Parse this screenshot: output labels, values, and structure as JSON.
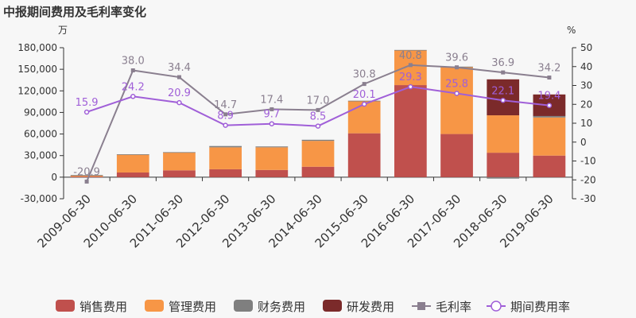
{
  "chart_data": {
    "type": "bar",
    "title": "中报期间费用及毛利率变化",
    "left_unit": "万",
    "right_unit": "%",
    "categories": [
      "2009-06-30",
      "2010-06-30",
      "2011-06-30",
      "2012-06-30",
      "2013-06-30",
      "2014-06-30",
      "2015-06-30",
      "2016-06-30",
      "2017-06-30",
      "2018-06-30",
      "2019-06-30"
    ],
    "left_axis": {
      "min": -30000,
      "max": 180000,
      "ticks": [
        -30000,
        0,
        30000,
        60000,
        90000,
        120000,
        150000,
        180000
      ],
      "tick_labels": [
        "-30,000",
        "0",
        "30,000",
        "60,000",
        "90,000",
        "120,000",
        "150,000",
        "180,000"
      ]
    },
    "right_axis": {
      "min": -30,
      "max": 50,
      "ticks": [
        -30,
        -20,
        -10,
        0,
        10,
        20,
        30,
        40,
        50
      ],
      "tick_labels": [
        "-30",
        "-20",
        "-10",
        "0",
        "10",
        "20",
        "30",
        "40",
        "50"
      ]
    },
    "series": [
      {
        "name": "销售费用",
        "kind": "bar",
        "color": "#c0504d",
        "values": [
          800,
          6500,
          9500,
          11000,
          10000,
          14500,
          61000,
          128000,
          60000,
          34000,
          30000
        ]
      },
      {
        "name": "管理费用",
        "kind": "bar",
        "color": "#f79646",
        "values": [
          1200,
          25000,
          25000,
          30500,
          31500,
          36000,
          45000,
          48500,
          93000,
          52000,
          53000
        ]
      },
      {
        "name": "财务费用",
        "kind": "bar",
        "color": "#7f7f7f",
        "values": [
          1000,
          300,
          300,
          1800,
          1200,
          1500,
          300,
          400,
          700,
          -2000,
          2000
        ]
      },
      {
        "name": "研发费用",
        "kind": "bar",
        "color": "#7b2a2a",
        "values": [
          0,
          0,
          0,
          0,
          0,
          0,
          0,
          0,
          0,
          50000,
          30000
        ]
      },
      {
        "name": "毛利率",
        "kind": "line",
        "color": "#8a7f8f",
        "values": [
          -20.9,
          38.0,
          34.4,
          14.7,
          17.4,
          17.0,
          30.8,
          40.8,
          39.6,
          36.9,
          34.2
        ],
        "labels": [
          "-20.9",
          "38.0",
          "34.4",
          "14.7",
          "17.4",
          "17.0",
          "30.8",
          "40.8",
          "39.6",
          "36.9",
          "34.2"
        ]
      },
      {
        "name": "期间费用率",
        "kind": "line",
        "color": "#a05fd8",
        "values": [
          15.9,
          24.2,
          20.9,
          8.9,
          9.7,
          8.5,
          20.1,
          29.3,
          25.8,
          22.1,
          19.4
        ],
        "labels": [
          "15.9",
          "24.2",
          "20.9",
          "8.9",
          "9.7",
          "8.5",
          "20.1",
          "29.3",
          "25.8",
          "22.1",
          "19.4"
        ]
      }
    ],
    "legend_position": "bottom",
    "grid": false
  }
}
